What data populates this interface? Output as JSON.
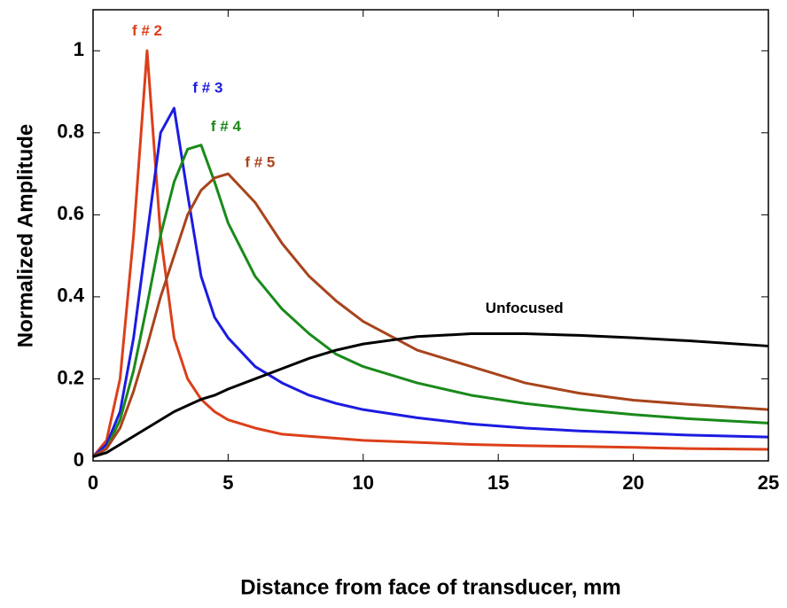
{
  "chart_data": {
    "type": "line",
    "xlabel": "Distance from face of transducer, mm",
    "ylabel": "Normalized Amplitude",
    "x": [
      0,
      0.5,
      1,
      1.5,
      2,
      2.5,
      3,
      3.5,
      4,
      4.5,
      5,
      6,
      7,
      8,
      9,
      10,
      12,
      14,
      16,
      18,
      20,
      22,
      25
    ],
    "series": [
      {
        "name": "f # 2",
        "color": "#dc3f1a",
        "values": [
          0.01,
          0.05,
          0.2,
          0.55,
          1.0,
          0.55,
          0.3,
          0.2,
          0.15,
          0.12,
          0.1,
          0.08,
          0.065,
          0.06,
          0.055,
          0.05,
          0.045,
          0.04,
          0.037,
          0.035,
          0.033,
          0.03,
          0.028
        ]
      },
      {
        "name": "f # 3",
        "color": "#1c1ce0",
        "values": [
          0.01,
          0.04,
          0.12,
          0.3,
          0.55,
          0.8,
          0.86,
          0.65,
          0.45,
          0.35,
          0.3,
          0.23,
          0.19,
          0.16,
          0.14,
          0.125,
          0.105,
          0.09,
          0.08,
          0.073,
          0.068,
          0.063,
          0.058
        ]
      },
      {
        "name": "f # 4",
        "color": "#1a8a1a",
        "values": [
          0.01,
          0.03,
          0.1,
          0.22,
          0.38,
          0.55,
          0.68,
          0.76,
          0.77,
          0.68,
          0.58,
          0.45,
          0.37,
          0.31,
          0.26,
          0.23,
          0.19,
          0.16,
          0.14,
          0.125,
          0.113,
          0.103,
          0.092
        ]
      },
      {
        "name": "f # 5",
        "color": "#a8441c",
        "values": [
          0.01,
          0.03,
          0.08,
          0.17,
          0.28,
          0.4,
          0.5,
          0.6,
          0.66,
          0.69,
          0.7,
          0.63,
          0.53,
          0.45,
          0.39,
          0.34,
          0.27,
          0.23,
          0.19,
          0.165,
          0.148,
          0.138,
          0.125
        ]
      },
      {
        "name": "Unfocused",
        "color": "#000000",
        "values": [
          0.01,
          0.02,
          0.04,
          0.06,
          0.08,
          0.1,
          0.12,
          0.135,
          0.15,
          0.16,
          0.175,
          0.2,
          0.225,
          0.25,
          0.27,
          0.285,
          0.303,
          0.31,
          0.31,
          0.306,
          0.3,
          0.293,
          0.28
        ]
      }
    ],
    "xlim": [
      0,
      25
    ],
    "xticks": [
      0,
      5,
      10,
      15,
      20,
      25
    ],
    "ylim": [
      0,
      1.1
    ],
    "yticks": [
      0,
      0.2,
      0.4,
      0.6,
      0.8,
      1
    ]
  }
}
